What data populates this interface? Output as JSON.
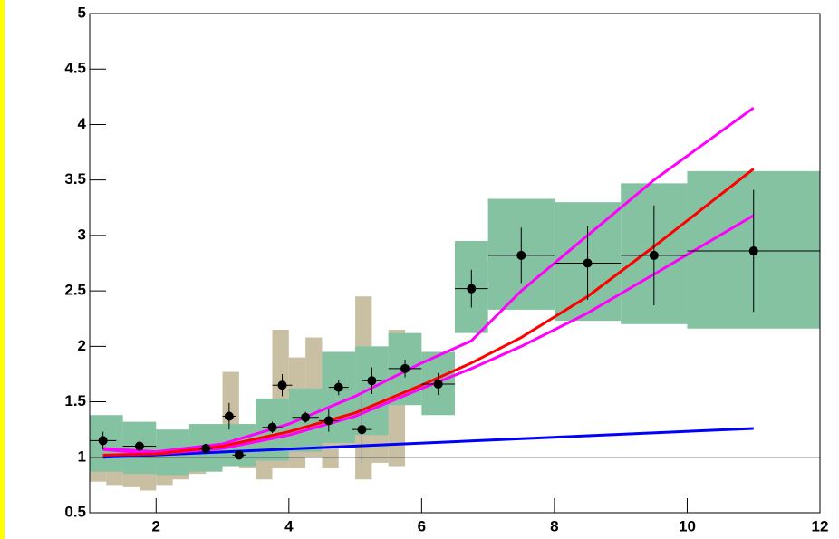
{
  "chart_data": {
    "type": "errorbar",
    "xlim": [
      1,
      12
    ],
    "ylim": [
      0.5,
      5
    ],
    "xticks": [
      2,
      4,
      6,
      8,
      10,
      12
    ],
    "yticks": [
      0.5,
      1,
      1.5,
      2,
      2.5,
      3,
      3.5,
      4,
      4.5,
      5
    ],
    "reference_line": 1,
    "bands": [
      {
        "color": "#c9c0a3",
        "bins": [
          1,
          1.25,
          1.5,
          1.75,
          2,
          2.25,
          2.5,
          2.75,
          3,
          3.25,
          3.5,
          3.75,
          4,
          4.25,
          4.5,
          4.75,
          5,
          5.25,
          5.5,
          5.75
        ],
        "low": [
          0.78,
          0.75,
          0.73,
          0.7,
          0.75,
          0.8,
          0.85,
          0.9,
          0.97,
          0.9,
          0.8,
          0.9,
          0.9,
          1.0,
          0.9,
          1.1,
          0.8,
          0.95,
          0.92
        ],
        "high": [
          1.2,
          1.15,
          1.1,
          1.1,
          1.15,
          1.2,
          1.25,
          1.25,
          1.77,
          1.15,
          1.5,
          2.15,
          1.9,
          2.08,
          1.5,
          1.6,
          2.45,
          1.9,
          2.15
        ]
      },
      {
        "color": "#85c2a2",
        "bins": [
          1,
          1.5,
          2,
          2.5,
          3,
          3.5,
          4,
          4.5,
          5,
          5.5,
          6,
          6.5,
          7,
          8,
          9,
          10,
          12
        ],
        "low": [
          0.87,
          0.85,
          0.84,
          0.87,
          0.92,
          0.97,
          1.05,
          1.13,
          1.2,
          1.47,
          1.38,
          2.12,
          2.33,
          2.23,
          2.2,
          2.16
        ],
        "high": [
          1.38,
          1.32,
          1.25,
          1.3,
          1.3,
          1.53,
          1.62,
          1.95,
          2.0,
          2.12,
          1.95,
          2.95,
          3.33,
          3.3,
          3.47,
          3.58
        ]
      }
    ],
    "curves": [
      {
        "color": "#0000ff",
        "x": [
          1.2,
          11
        ],
        "y": [
          1.0,
          1.26
        ]
      },
      {
        "color": "#ff00ff",
        "x": [
          1.2,
          2,
          3,
          4,
          5,
          6,
          6.75,
          7.5,
          8.5,
          9.5,
          11
        ],
        "y": [
          1.08,
          1.05,
          1.12,
          1.3,
          1.55,
          1.85,
          2.05,
          2.5,
          3.0,
          3.5,
          4.15
        ]
      },
      {
        "color": "#ff00ff",
        "x": [
          1.2,
          2,
          3,
          4,
          5,
          6,
          6.75,
          7.5,
          8.5,
          9.5,
          11
        ],
        "y": [
          1.07,
          1.03,
          1.08,
          1.2,
          1.37,
          1.62,
          1.8,
          2.0,
          2.3,
          2.65,
          3.18
        ]
      },
      {
        "color": "#ff0000",
        "x": [
          1.2,
          2,
          3,
          4,
          5,
          6,
          6.75,
          7.5,
          8.5,
          9.5,
          11
        ],
        "y": [
          1.02,
          1.03,
          1.1,
          1.23,
          1.4,
          1.65,
          1.85,
          2.08,
          2.45,
          2.9,
          3.6
        ]
      }
    ],
    "points": {
      "color": "#000000",
      "x": [
        1.2,
        1.75,
        2.75,
        3.1,
        3.25,
        3.75,
        3.9,
        4.25,
        4.6,
        4.75,
        5.1,
        5.25,
        5.75,
        6.25,
        6.75,
        7.5,
        8.5,
        9.5,
        11
      ],
      "y": [
        1.15,
        1.1,
        1.08,
        1.37,
        1.02,
        1.27,
        1.65,
        1.36,
        1.33,
        1.63,
        1.25,
        1.69,
        1.8,
        1.66,
        2.52,
        2.82,
        2.75,
        2.82,
        2.86
      ],
      "xerr": [
        0.2,
        0.25,
        0.1,
        0.1,
        0.1,
        0.15,
        0.15,
        0.2,
        0.15,
        0.15,
        0.15,
        0.15,
        0.25,
        0.25,
        0.25,
        0.5,
        0.5,
        0.5,
        1.0
      ],
      "yerr": [
        0.08,
        0.04,
        0.04,
        0.12,
        0.04,
        0.05,
        0.1,
        0.05,
        0.1,
        0.07,
        0.3,
        0.12,
        0.08,
        0.1,
        0.17,
        0.25,
        0.33,
        0.45,
        0.55
      ]
    }
  }
}
